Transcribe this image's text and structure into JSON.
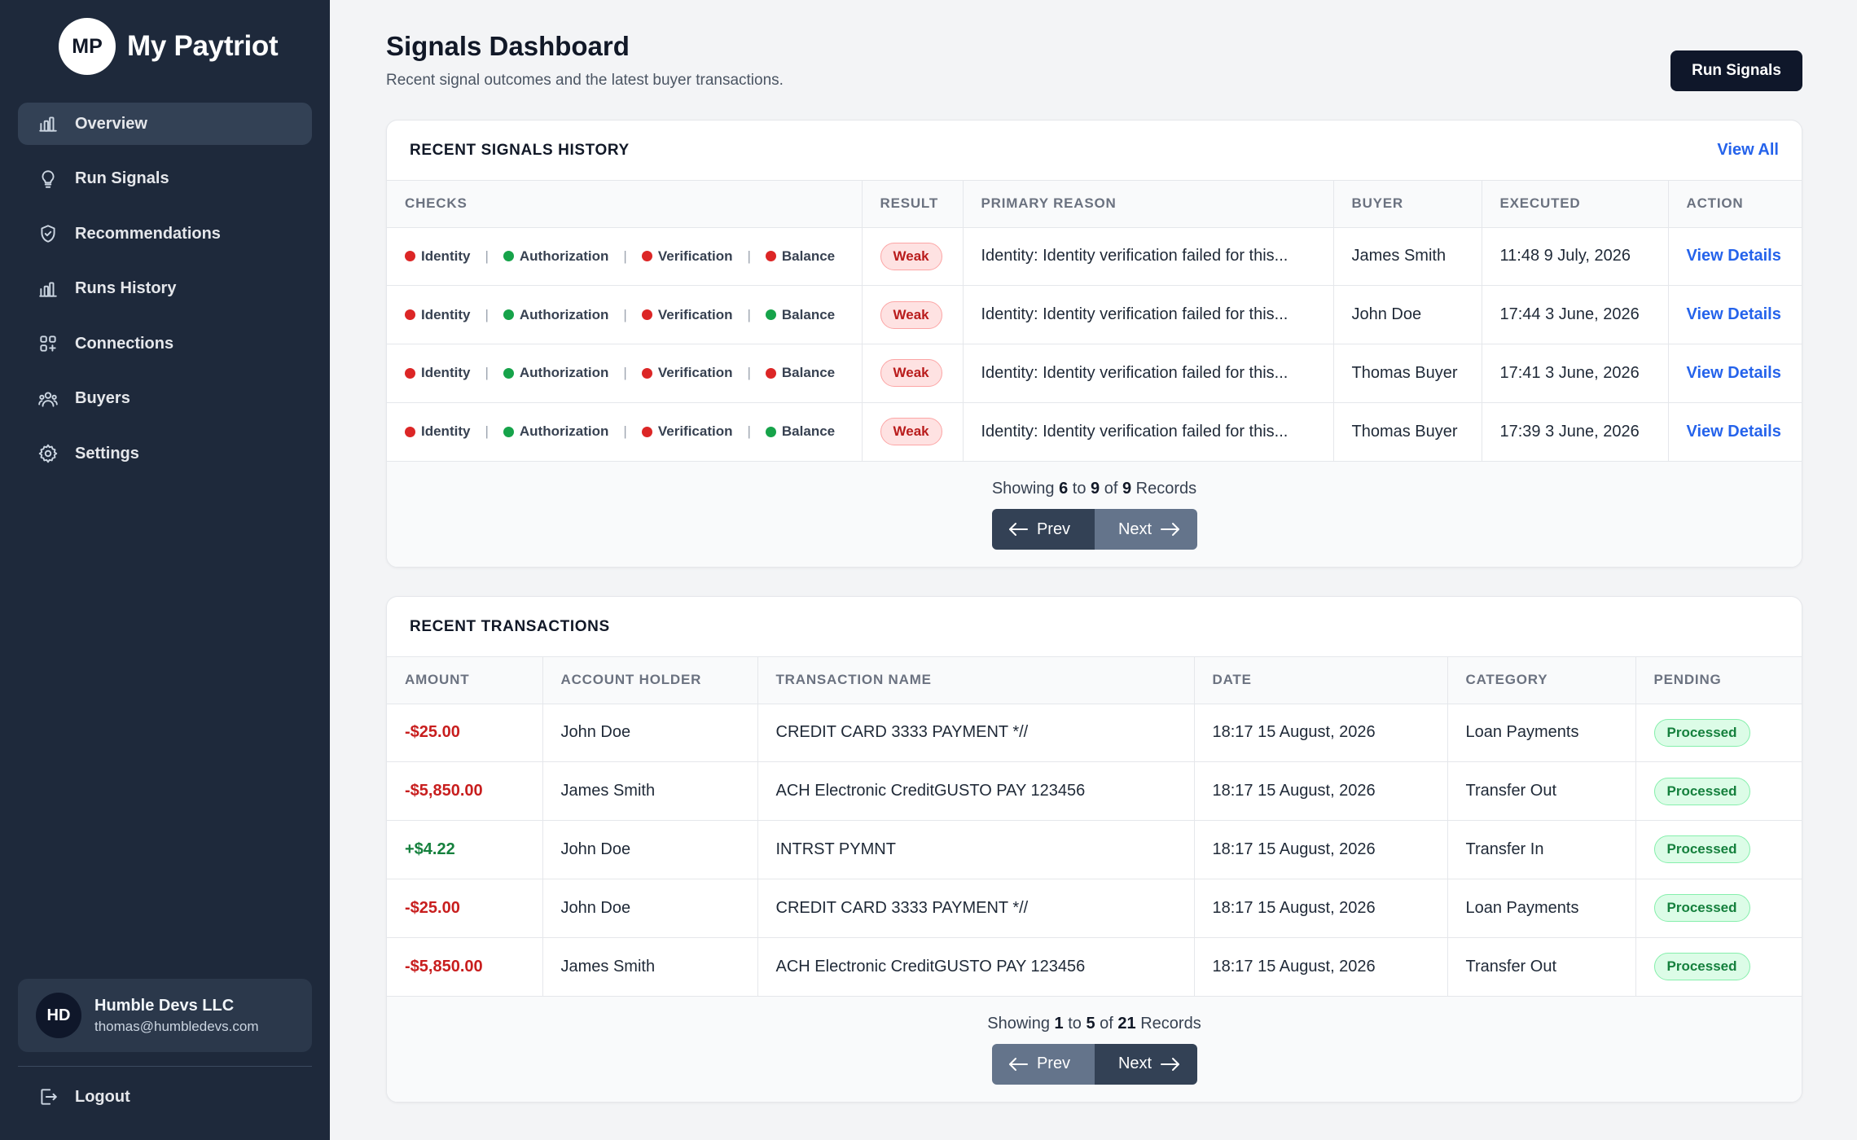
{
  "app": {
    "logo_initials": "MP",
    "name": "My Paytriot"
  },
  "sidebar": {
    "items": [
      {
        "label": "Overview",
        "icon": "chart-bar-icon",
        "active": true
      },
      {
        "label": "Run Signals",
        "icon": "lightbulb-icon",
        "active": false
      },
      {
        "label": "Recommendations",
        "icon": "shield-check-icon",
        "active": false
      },
      {
        "label": "Runs History",
        "icon": "chart-bar-icon",
        "active": false
      },
      {
        "label": "Connections",
        "icon": "grid-plus-icon",
        "active": false
      },
      {
        "label": "Buyers",
        "icon": "users-icon",
        "active": false
      },
      {
        "label": "Settings",
        "icon": "gear-icon",
        "active": false
      }
    ],
    "account": {
      "initials": "HD",
      "name": "Humble Devs LLC",
      "email": "thomas@humbledevs.com"
    },
    "logout_label": "Logout"
  },
  "header": {
    "title": "Signals Dashboard",
    "subtitle": "Recent signal outcomes and the latest buyer transactions.",
    "run_button": "Run Signals"
  },
  "signals": {
    "title": "RECENT SIGNALS HISTORY",
    "view_all": "View All",
    "columns": [
      "CHECKS",
      "RESULT",
      "PRIMARY REASON",
      "BUYER",
      "EXECUTED",
      "ACTION"
    ],
    "check_labels": [
      "Identity",
      "Authorization",
      "Verification",
      "Balance"
    ],
    "rows": [
      {
        "checks": [
          "fail",
          "pass",
          "fail",
          "fail"
        ],
        "result": "Weak",
        "reason": "Identity: Identity verification failed for this...",
        "buyer": "James Smith",
        "executed": "11:48 9 July, 2026",
        "action": "View Details"
      },
      {
        "checks": [
          "fail",
          "pass",
          "fail",
          "pass"
        ],
        "result": "Weak",
        "reason": "Identity: Identity verification failed for this...",
        "buyer": "John Doe",
        "executed": "17:44 3 June, 2026",
        "action": "View Details"
      },
      {
        "checks": [
          "fail",
          "pass",
          "fail",
          "fail"
        ],
        "result": "Weak",
        "reason": "Identity: Identity verification failed for this...",
        "buyer": "Thomas Buyer",
        "executed": "17:41 3 June, 2026",
        "action": "View Details"
      },
      {
        "checks": [
          "fail",
          "pass",
          "fail",
          "pass"
        ],
        "result": "Weak",
        "reason": "Identity: Identity verification failed for this...",
        "buyer": "Thomas Buyer",
        "executed": "17:39 3 June, 2026",
        "action": "View Details"
      }
    ],
    "pager": {
      "prefix": "Showing",
      "from": "6",
      "to_word": "to",
      "to": "9",
      "of_word": "of",
      "total": "9",
      "suffix": "Records",
      "prev": "Prev",
      "next": "Next"
    }
  },
  "transactions": {
    "title": "RECENT TRANSACTIONS",
    "columns": [
      "AMOUNT",
      "ACCOUNT HOLDER",
      "TRANSACTION NAME",
      "DATE",
      "CATEGORY",
      "PENDING"
    ],
    "rows": [
      {
        "amount": "-$25.00",
        "sign": "neg",
        "holder": "John Doe",
        "name": "CREDIT CARD 3333 PAYMENT *//",
        "date": "18:17 15 August, 2026",
        "category": "Loan Payments",
        "pending": "Processed"
      },
      {
        "amount": "-$5,850.00",
        "sign": "neg",
        "holder": "James Smith",
        "name": "ACH Electronic CreditGUSTO PAY 123456",
        "date": "18:17 15 August, 2026",
        "category": "Transfer Out",
        "pending": "Processed"
      },
      {
        "amount": "+$4.22",
        "sign": "pos",
        "holder": "John Doe",
        "name": "INTRST PYMNT",
        "date": "18:17 15 August, 2026",
        "category": "Transfer In",
        "pending": "Processed"
      },
      {
        "amount": "-$25.00",
        "sign": "neg",
        "holder": "John Doe",
        "name": "CREDIT CARD 3333 PAYMENT *//",
        "date": "18:17 15 August, 2026",
        "category": "Loan Payments",
        "pending": "Processed"
      },
      {
        "amount": "-$5,850.00",
        "sign": "neg",
        "holder": "James Smith",
        "name": "ACH Electronic CreditGUSTO PAY 123456",
        "date": "18:17 15 August, 2026",
        "category": "Transfer Out",
        "pending": "Processed"
      }
    ],
    "pager": {
      "prefix": "Showing",
      "from": "1",
      "to_word": "to",
      "to": "5",
      "of_word": "of",
      "total": "21",
      "suffix": "Records",
      "prev": "Prev",
      "next": "Next"
    }
  },
  "colors": {
    "pass": "#16a34a",
    "fail": "#dc2626",
    "accent": "#2563eb",
    "sidebar": "#1e293b"
  }
}
